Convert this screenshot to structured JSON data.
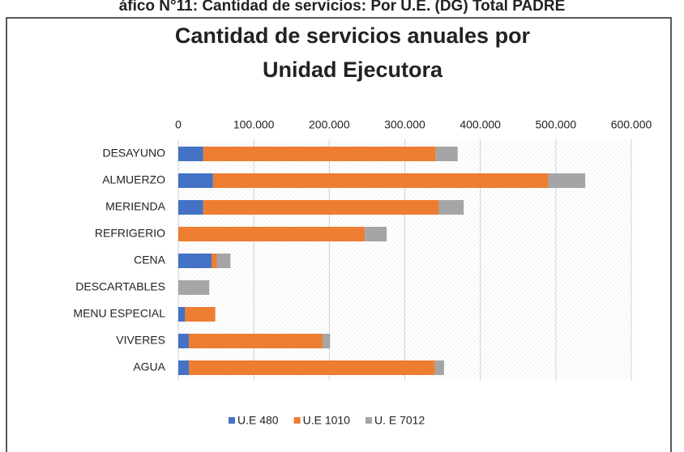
{
  "heading": "áfico N°11: Cantidad de servicios: Por U.E. (DG) Total PADRE",
  "chart_data": {
    "type": "stacked_bar_horizontal",
    "title": [
      "Cantidad de servicios anuales por",
      "Unidad Ejecutora"
    ],
    "categories": [
      "DESAYUNO",
      "ALMUERZO",
      "MERIENDA",
      "REFRIGERIO",
      "CENA",
      "DESCARTABLES",
      "MENU ESPECIAL",
      "VIVERES",
      "AGUA"
    ],
    "series": [
      {
        "name": "U.E 480",
        "color": "#4472c4",
        "values": [
          33000,
          46000,
          33000,
          0,
          44000,
          0,
          9000,
          14000,
          14000
        ]
      },
      {
        "name": "U.E 1010",
        "color": "#ed7d31",
        "values": [
          308000,
          444000,
          312000,
          247000,
          7000,
          0,
          40000,
          177000,
          326000
        ]
      },
      {
        "name": "U. E 7012",
        "color": "#a5a5a5",
        "values": [
          29000,
          49000,
          33000,
          29000,
          18000,
          41000,
          0,
          10000,
          12000
        ]
      }
    ],
    "xlim": [
      0,
      600000
    ],
    "xticks": [
      0,
      {
        "value": 100000,
        "label": "100.000"
      },
      {
        "value": 200000,
        "label": "200.000"
      },
      {
        "value": 300000,
        "label": "300.000"
      },
      {
        "value": 400000,
        "label": "400.000"
      },
      {
        "value": 500000,
        "label": "500.000"
      },
      {
        "value": 600000,
        "label": "600.000"
      }
    ],
    "grid": true,
    "legend": "bottom"
  }
}
